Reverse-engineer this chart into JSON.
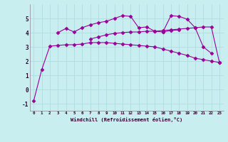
{
  "xlabel": "Windchill (Refroidissement éolien,°C)",
  "background_color": "#c8eef0",
  "grid_color": "#b0dde0",
  "line_color": "#990099",
  "x_values": [
    0,
    1,
    2,
    3,
    4,
    5,
    6,
    7,
    8,
    9,
    10,
    11,
    12,
    13,
    14,
    15,
    16,
    17,
    18,
    19,
    20,
    21,
    22,
    23
  ],
  "series": [
    [
      -0.8,
      1.4,
      3.05,
      3.1,
      3.15,
      3.15,
      3.2,
      3.3,
      3.3,
      3.3,
      3.25,
      3.2,
      3.15,
      3.1,
      3.05,
      3.0,
      2.85,
      2.7,
      2.55,
      2.4,
      2.2,
      2.1,
      2.0,
      1.9
    ],
    [
      null,
      null,
      null,
      4.0,
      4.3,
      4.05,
      4.35,
      4.55,
      4.7,
      4.8,
      5.0,
      5.2,
      5.15,
      4.35,
      4.4,
      4.1,
      4.05,
      5.2,
      5.15,
      4.95,
      4.35,
      3.0,
      2.55,
      null
    ],
    [
      null,
      null,
      null,
      null,
      null,
      null,
      null,
      3.55,
      3.7,
      3.85,
      3.95,
      4.0,
      4.05,
      4.05,
      4.1,
      4.1,
      4.15,
      4.2,
      4.25,
      4.3,
      4.35,
      4.4,
      4.4,
      1.9
    ],
    [
      null,
      null,
      null,
      null,
      null,
      null,
      null,
      null,
      null,
      null,
      null,
      null,
      null,
      null,
      null,
      null,
      4.05,
      4.15,
      4.2,
      null,
      null,
      null,
      null,
      null
    ]
  ],
  "ylim": [
    -1.5,
    6.0
  ],
  "xlim": [
    -0.5,
    23.5
  ],
  "yticks": [
    -1,
    0,
    1,
    2,
    3,
    4,
    5
  ],
  "xticks": [
    0,
    1,
    2,
    3,
    4,
    5,
    6,
    7,
    8,
    9,
    10,
    11,
    12,
    13,
    14,
    15,
    16,
    17,
    18,
    19,
    20,
    21,
    22,
    23
  ],
  "marker": "D",
  "markersize": 2.5,
  "linewidth": 0.8
}
